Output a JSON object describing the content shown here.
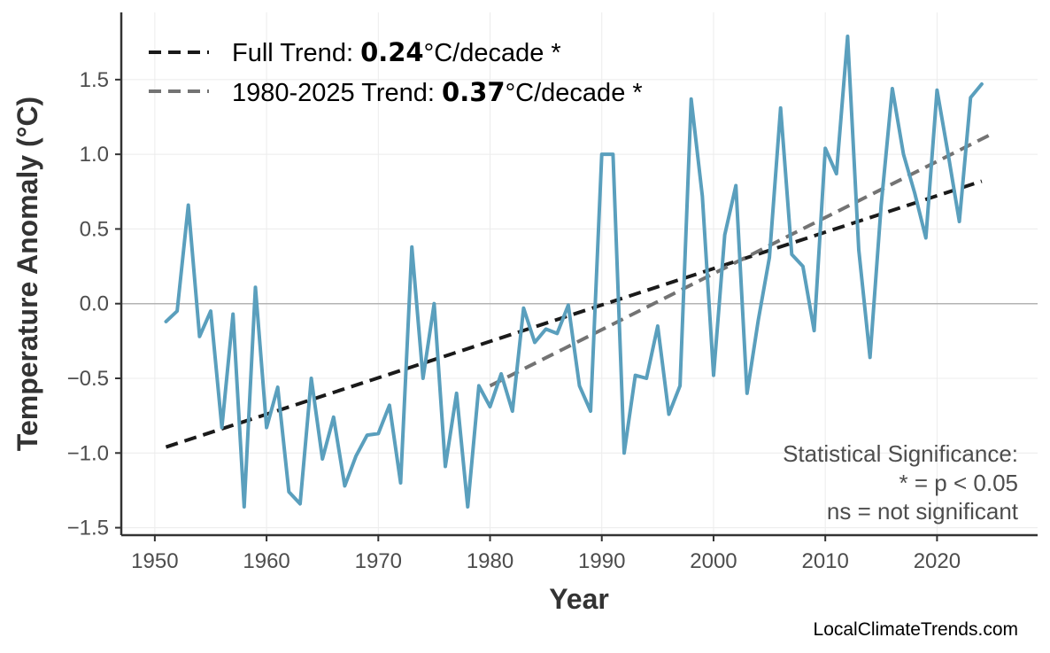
{
  "chart_data": {
    "type": "line",
    "xlabel": "Year",
    "ylabel": "Temperature Anomaly (°C)",
    "xlim": [
      1947,
      2029
    ],
    "ylim": [
      -1.55,
      1.95
    ],
    "xticks": [
      1950,
      1960,
      1970,
      1980,
      1990,
      2000,
      2010,
      2020
    ],
    "yticks": [
      -1.5,
      -1.0,
      -0.5,
      0.0,
      0.5,
      1.0,
      1.5
    ],
    "ytick_labels": [
      "−1.5",
      "−1.0",
      "−0.5",
      "0.0",
      "0.5",
      "1.0",
      "1.5"
    ],
    "grid": true,
    "zero_line": true,
    "series": [
      {
        "name": "Temperature Anomaly",
        "color": "#5a9fbd",
        "x": [
          1951,
          1952,
          1953,
          1954,
          1955,
          1956,
          1957,
          1958,
          1959,
          1960,
          1961,
          1962,
          1963,
          1964,
          1965,
          1966,
          1967,
          1968,
          1969,
          1970,
          1971,
          1972,
          1973,
          1974,
          1975,
          1976,
          1977,
          1978,
          1979,
          1980,
          1981,
          1982,
          1983,
          1984,
          1985,
          1986,
          1987,
          1988,
          1989,
          1990,
          1991,
          1992,
          1993,
          1994,
          1995,
          1996,
          1997,
          1998,
          1999,
          2000,
          2001,
          2002,
          2003,
          2004,
          2005,
          2006,
          2007,
          2008,
          2009,
          2010,
          2011,
          2012,
          2013,
          2014,
          2015,
          2016,
          2017,
          2018,
          2019,
          2020,
          2021,
          2022,
          2023,
          2024
        ],
        "y": [
          -0.12,
          -0.05,
          0.66,
          -0.22,
          -0.05,
          -0.83,
          -0.07,
          -1.36,
          0.11,
          -0.83,
          -0.56,
          -1.26,
          -1.34,
          -0.5,
          -1.04,
          -0.76,
          -1.22,
          -1.02,
          -0.88,
          -0.87,
          -0.68,
          -1.2,
          0.38,
          -0.5,
          0.0,
          -1.09,
          -0.6,
          -1.36,
          -0.55,
          -0.69,
          -0.47,
          -0.72,
          -0.03,
          -0.26,
          -0.17,
          -0.2,
          -0.01,
          -0.55,
          -0.72,
          1.0,
          1.0,
          -1.0,
          -0.48,
          -0.5,
          -0.15,
          -0.74,
          -0.55,
          1.37,
          0.72,
          -0.48,
          0.46,
          0.79,
          -0.6,
          -0.11,
          0.31,
          1.31,
          0.33,
          0.25,
          -0.18,
          1.04,
          0.87,
          1.79,
          0.36,
          -0.36,
          0.66,
          1.44,
          1.0,
          0.74,
          0.44,
          1.43,
          1.0,
          0.55,
          1.38,
          1.47
        ]
      }
    ],
    "trends": [
      {
        "label_prefix": "Full Trend: ",
        "value": "0.24",
        "label_suffix": "°C/decade *",
        "color": "#1a1a1a",
        "x": [
          1951,
          2024
        ],
        "y": [
          -0.96,
          0.82
        ]
      },
      {
        "label_prefix": "1980-2025 Trend: ",
        "value": "0.37",
        "label_suffix": "°C/decade *",
        "color": "#737373",
        "x": [
          1980,
          2025
        ],
        "y": [
          -0.55,
          1.14
        ]
      }
    ],
    "annotation": [
      "Statistical Significance:",
      "* = p < 0.05",
      "ns = not significant"
    ],
    "credit": "LocalClimateTrends.com"
  }
}
